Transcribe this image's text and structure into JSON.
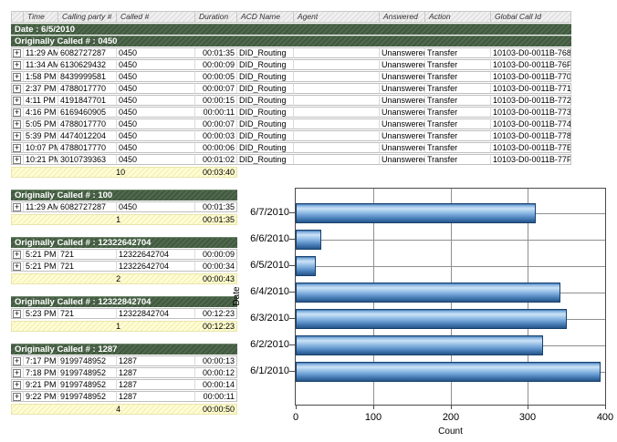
{
  "table": {
    "columns": [
      "",
      "Time",
      "Calling party #",
      "Called #",
      "Duration",
      "ACD Name",
      "Agent",
      "Answered",
      "Action",
      "Global Call Id"
    ],
    "date_header": "Date : 6/5/2010",
    "groups": [
      {
        "title": "Originally Called # : 0450",
        "rows": [
          {
            "time": "11:29 AM",
            "calling": "6082727287",
            "called": "0450",
            "duration": "00:01:35",
            "acd": "DID_Routing",
            "agent": "",
            "answered": "Unanswered",
            "action": "Transfer",
            "global_id": "10103-D0-0011B-768"
          },
          {
            "time": "11:34 AM",
            "calling": "6130629432",
            "called": "0450",
            "duration": "00:00:09",
            "acd": "DID_Routing",
            "agent": "",
            "answered": "Unanswered",
            "action": "Transfer",
            "global_id": "10103-D0-0011B-76F"
          },
          {
            "time": "1:58 PM",
            "calling": "8439999581",
            "called": "0450",
            "duration": "00:00:05",
            "acd": "DID_Routing",
            "agent": "",
            "answered": "Unanswered",
            "action": "Transfer",
            "global_id": "10103-D0-0011B-770"
          },
          {
            "time": "2:37 PM",
            "calling": "4788017770",
            "called": "0450",
            "duration": "00:00:07",
            "acd": "DID_Routing",
            "agent": "",
            "answered": "Unanswered",
            "action": "Transfer",
            "global_id": "10103-D0-0011B-771"
          },
          {
            "time": "4:11 PM",
            "calling": "4191847701",
            "called": "0450",
            "duration": "00:00:15",
            "acd": "DID_Routing",
            "agent": "",
            "answered": "Unanswered",
            "action": "Transfer",
            "global_id": "10103-D0-0011B-772"
          },
          {
            "time": "4:16 PM",
            "calling": "6169460905",
            "called": "0450",
            "duration": "00:00:11",
            "acd": "DID_Routing",
            "agent": "",
            "answered": "Unanswered",
            "action": "Transfer",
            "global_id": "10103-D0-0011B-773"
          },
          {
            "time": "5:05 PM",
            "calling": "4788017770",
            "called": "0450",
            "duration": "00:00:07",
            "acd": "DID_Routing",
            "agent": "",
            "answered": "Unanswered",
            "action": "Transfer",
            "global_id": "10103-D0-0011B-774"
          },
          {
            "time": "5:39 PM",
            "calling": "4474012204",
            "called": "0450",
            "duration": "00:00:03",
            "acd": "DID_Routing",
            "agent": "",
            "answered": "Unanswered",
            "action": "Transfer",
            "global_id": "10103-D0-0011B-778"
          },
          {
            "time": "10:07 PM",
            "calling": "4788017770",
            "called": "0450",
            "duration": "00:00:06",
            "acd": "DID_Routing",
            "agent": "",
            "answered": "Unanswered",
            "action": "Transfer",
            "global_id": "10103-D0-0011B-77E"
          },
          {
            "time": "10:21 PM",
            "calling": "3010739363",
            "called": "0450",
            "duration": "00:01:02",
            "acd": "DID_Routing",
            "agent": "",
            "answered": "Unanswered",
            "action": "Transfer",
            "global_id": "10103-D0-0011B-77F"
          }
        ],
        "summary": {
          "count": "10",
          "total_duration": "00:03:40"
        }
      },
      {
        "title": "Originally Called # : 100",
        "rows": [
          {
            "time": "11:29 AM",
            "calling": "6082727287",
            "called": "0450",
            "duration": "00:01:35"
          }
        ],
        "summary": {
          "count": "1",
          "total_duration": "00:01:35"
        }
      },
      {
        "title": "Originally Called # : 12322642704",
        "rows": [
          {
            "time": "5:21 PM",
            "calling": "721",
            "called": "12322642704",
            "duration": "00:00:09"
          },
          {
            "time": "5:21 PM",
            "calling": "721",
            "called": "12322642704",
            "duration": "00:00:34"
          }
        ],
        "summary": {
          "count": "2",
          "total_duration": "00:00:43"
        }
      },
      {
        "title": "Originally Called # : 12322842704",
        "rows": [
          {
            "time": "5:23 PM",
            "calling": "721",
            "called": "12322842704",
            "duration": "00:12:23"
          }
        ],
        "summary": {
          "count": "1",
          "total_duration": "00:12:23"
        }
      },
      {
        "title": "Originally Called # : 1287",
        "rows": [
          {
            "time": "7:17 PM",
            "calling": "9199748952",
            "called": "1287",
            "duration": "00:00:13"
          },
          {
            "time": "7:18 PM",
            "calling": "9199748952",
            "called": "1287",
            "duration": "00:00:12"
          },
          {
            "time": "9:21 PM",
            "calling": "9199748952",
            "called": "1287",
            "duration": "00:00:14"
          },
          {
            "time": "9:22 PM",
            "calling": "9199748952",
            "called": "1287",
            "duration": "00:00:11"
          }
        ],
        "summary": {
          "count": "4",
          "total_duration": "00:00:50"
        }
      }
    ],
    "colors": {
      "group_header_green": "#496146",
      "summary_yellow": "#fbf7c8",
      "header_gray": "#e9e9e9"
    }
  },
  "chart_data": {
    "type": "bar",
    "orientation": "horizontal",
    "title": "",
    "categories": [
      "6/7/2010",
      "6/6/2010",
      "6/5/2010",
      "6/4/2010",
      "6/3/2010",
      "6/2/2010",
      "6/1/2010"
    ],
    "values": [
      310,
      33,
      26,
      342,
      351,
      320,
      394
    ],
    "xlabel": "Count",
    "ylabel": "Date",
    "xlim": [
      0,
      400
    ],
    "xticks": [
      0,
      100,
      200,
      300,
      400
    ],
    "grid": true,
    "legend_position": "none",
    "bar_color": "#5b8fc9",
    "bar_border_color": "#17406e"
  }
}
